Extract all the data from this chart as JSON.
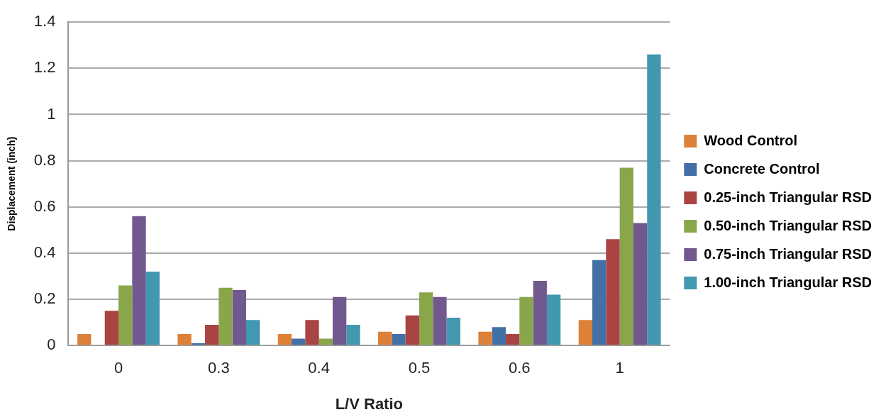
{
  "chart_data": {
    "type": "bar",
    "xlabel": "L/V Ratio",
    "ylabel": "Displacement (inch)",
    "categories": [
      "0",
      "0.3",
      "0.4",
      "0.5",
      "0.6",
      "1"
    ],
    "series": [
      {
        "name": "Wood Control",
        "color": "#dd8139",
        "values": [
          0.05,
          0.05,
          0.05,
          0.06,
          0.06,
          0.11
        ]
      },
      {
        "name": "Concrete Control",
        "color": "#4470a8",
        "values": [
          0,
          0.01,
          0.03,
          0.05,
          0.08,
          0.37
        ]
      },
      {
        "name": "0.25-inch Triangular RSD",
        "color": "#a94442",
        "values": [
          0.15,
          0.09,
          0.11,
          0.13,
          0.05,
          0.46
        ]
      },
      {
        "name": "0.50-inch Triangular RSD",
        "color": "#8aa64b",
        "values": [
          0.26,
          0.25,
          0.03,
          0.23,
          0.21,
          0.77
        ]
      },
      {
        "name": "0.75-inch Triangular RSD",
        "color": "#71588f",
        "values": [
          0.56,
          0.24,
          0.21,
          0.21,
          0.28,
          0.53
        ]
      },
      {
        "name": "1.00-inch Triangular RSD",
        "color": "#4198af",
        "values": [
          0.32,
          0.11,
          0.09,
          0.12,
          0.22,
          1.26
        ]
      }
    ],
    "ylim": [
      0,
      1.4
    ],
    "yticks": [
      0,
      0.2,
      0.4,
      0.6,
      0.8,
      1,
      1.2,
      1.4
    ],
    "grid": "y",
    "legend": "right"
  }
}
